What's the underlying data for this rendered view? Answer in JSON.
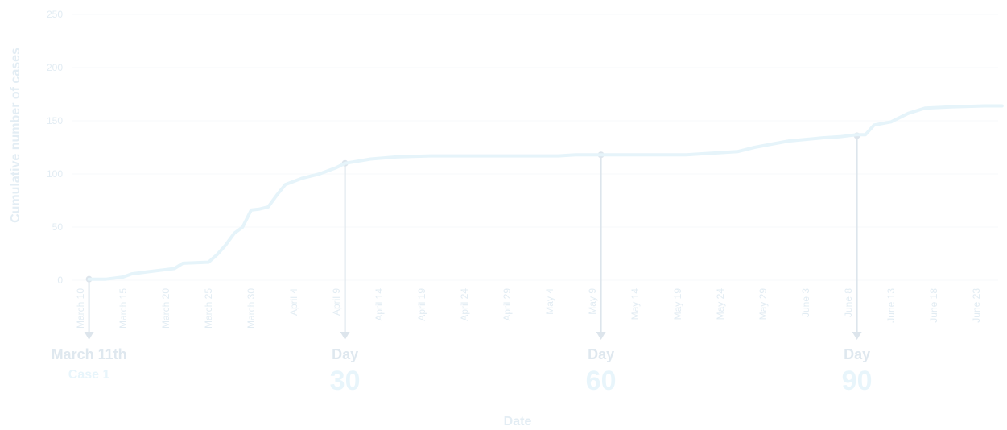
{
  "colors": {
    "line": "#e6f4fa",
    "marker": "#dde5ec",
    "tick_text": "#e2ecf3",
    "grid": "#f7f9fb"
  },
  "chart_data": {
    "type": "line",
    "xlabel": "Date",
    "ylabel": "Cumulative number of cases",
    "ylim": [
      0,
      250
    ],
    "y_ticks": [
      0,
      50,
      100,
      150,
      200,
      250
    ],
    "x_tick_labels": [
      "March 10",
      "March 15",
      "March 20",
      "March 25",
      "March 30",
      "April 4",
      "April 9",
      "April 14",
      "April 19",
      "April 24",
      "April 29",
      "May 4",
      "May 9",
      "May 14",
      "May 19",
      "May 24",
      "May 29",
      "June 3",
      "June 8",
      "June 13",
      "June 18",
      "June 23"
    ],
    "grid": false,
    "series": [
      {
        "x": [
          "2020-03-11",
          "2020-03-13",
          "2020-03-15",
          "2020-03-16",
          "2020-03-18",
          "2020-03-20",
          "2020-03-21",
          "2020-03-22",
          "2020-03-25",
          "2020-03-26",
          "2020-03-27",
          "2020-03-28",
          "2020-03-29",
          "2020-03-30",
          "2020-03-31",
          "2020-04-01",
          "2020-04-02",
          "2020-04-03",
          "2020-04-05",
          "2020-04-07",
          "2020-04-09",
          "2020-04-10",
          "2020-04-13",
          "2020-04-16",
          "2020-04-20",
          "2020-05-05",
          "2020-05-07",
          "2020-05-11",
          "2020-05-20",
          "2020-05-22",
          "2020-05-26",
          "2020-05-28",
          "2020-05-30",
          "2020-06-01",
          "2020-06-05",
          "2020-06-07",
          "2020-06-09",
          "2020-06-10",
          "2020-06-11",
          "2020-06-13",
          "2020-06-15",
          "2020-06-17",
          "2020-06-20",
          "2020-06-24",
          "2020-06-26"
        ],
        "y": [
          1,
          1,
          3,
          6,
          8,
          10,
          11,
          16,
          17,
          24,
          33,
          44,
          50,
          66,
          67,
          69,
          80,
          90,
          96,
          100,
          106,
          110,
          114,
          116,
          117,
          117,
          118,
          118,
          118,
          119,
          121,
          125,
          128,
          131,
          134,
          135,
          137,
          137,
          146,
          149,
          157,
          162,
          163,
          164,
          164
        ]
      }
    ],
    "annotations": [
      {
        "date": "2020-03-11",
        "y": 1,
        "label": "March 11th",
        "sub": "Case 1"
      },
      {
        "date": "2020-04-10",
        "y": 110,
        "label": "Day",
        "number": "30"
      },
      {
        "date": "2020-05-10",
        "y": 118,
        "label": "Day",
        "number": "60"
      },
      {
        "date": "2020-06-09",
        "y": 136,
        "label": "Day",
        "number": "90"
      }
    ]
  }
}
